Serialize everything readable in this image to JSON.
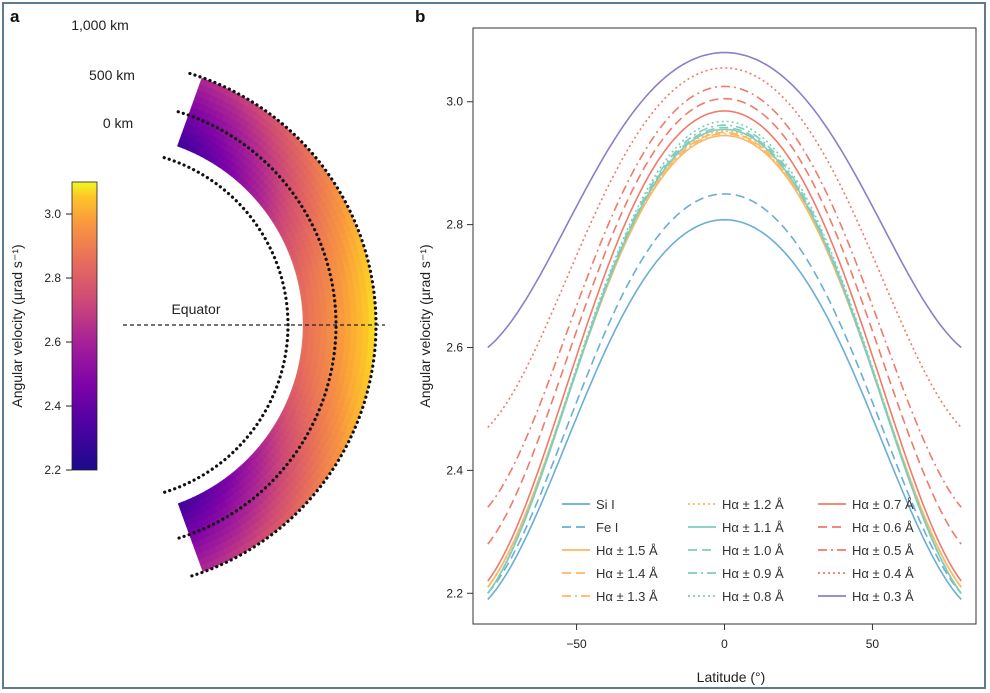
{
  "chart_data": [
    {
      "panel": "a",
      "type": "heatmap",
      "colorbar": {
        "label": "Angular velocity (µrad s⁻¹)",
        "ticks": [
          2.2,
          2.4,
          2.6,
          2.8,
          3.0
        ],
        "tick_labels": [
          "2.2",
          "2.4",
          "2.6",
          "2.8",
          "3.0"
        ],
        "range": [
          2.2,
          3.1
        ],
        "colormap": "plasma"
      },
      "height_labels": [
        "1,000 km",
        "500 km",
        "0 km"
      ],
      "annotation": "Equator"
    },
    {
      "panel": "b",
      "type": "line",
      "xlabel": "Latitude (°)",
      "ylabel": "Angular velocity (µrad s⁻¹)",
      "xlim": [
        -85,
        85
      ],
      "ylim": [
        2.15,
        3.12
      ],
      "xticks": [
        -50,
        0,
        50
      ],
      "xtick_labels": [
        "−50",
        "0",
        "50"
      ],
      "yticks": [
        2.2,
        2.4,
        2.6,
        2.8,
        3.0
      ],
      "ytick_labels": [
        "2.2",
        "2.4",
        "2.6",
        "2.8",
        "3.0"
      ],
      "legend_position": "bottom-center",
      "series": [
        {
          "name": "Si I",
          "color": "#6aaed6",
          "dash": "solid",
          "lat_range": [
            -80,
            80
          ],
          "peak": 2.808,
          "end": 2.19
        },
        {
          "name": "Fe I",
          "color": "#6aaed6",
          "dash": "long-dash",
          "lat_range": [
            -80,
            80
          ],
          "peak": 2.85,
          "end": 2.2
        },
        {
          "name": "Hα ± 1.5 Å",
          "color": "#fdb863",
          "dash": "solid",
          "lat_range": [
            -80,
            80
          ],
          "peak": 2.945,
          "end": 2.21
        },
        {
          "name": "Hα ± 1.4 Å",
          "color": "#fdb863",
          "dash": "long-dash",
          "lat_range": [
            -80,
            80
          ],
          "peak": 2.95,
          "end": 2.21
        },
        {
          "name": "Hα ± 1.3 Å",
          "color": "#fdb863",
          "dash": "dash-dot",
          "lat_range": [
            -80,
            80
          ],
          "peak": 2.948,
          "end": 2.21
        },
        {
          "name": "Hα ± 1.2 Å",
          "color": "#fdb863",
          "dash": "dotted",
          "lat_range": [
            -80,
            80
          ],
          "peak": 2.952,
          "end": 2.21
        },
        {
          "name": "Hα ± 1.1 Å",
          "color": "#7fcdbb",
          "dash": "solid",
          "lat_range": [
            -80,
            80
          ],
          "peak": 2.955,
          "end": 2.2
        },
        {
          "name": "Hα ± 1.0 Å",
          "color": "#7fcdbb",
          "dash": "long-dash",
          "lat_range": [
            -80,
            80
          ],
          "peak": 2.958,
          "end": 2.2
        },
        {
          "name": "Hα ± 0.9 Å",
          "color": "#7fcdbb",
          "dash": "dash-dot",
          "lat_range": [
            -80,
            80
          ],
          "peak": 2.962,
          "end": 2.2
        },
        {
          "name": "Hα ± 0.8 Å",
          "color": "#7fcdbb",
          "dash": "dotted",
          "lat_range": [
            -80,
            80
          ],
          "peak": 2.968,
          "end": 2.2
        },
        {
          "name": "Hα ± 0.7 Å",
          "color": "#f07a6a",
          "dash": "solid",
          "lat_range": [
            -80,
            80
          ],
          "peak": 2.985,
          "end": 2.22
        },
        {
          "name": "Hα ± 0.6 Å",
          "color": "#f07a6a",
          "dash": "long-dash",
          "lat_range": [
            -80,
            80
          ],
          "peak": 3.005,
          "end": 2.28
        },
        {
          "name": "Hα ± 0.5 Å",
          "color": "#f07a6a",
          "dash": "dash-dot",
          "lat_range": [
            -80,
            80
          ],
          "peak": 3.025,
          "end": 2.34
        },
        {
          "name": "Hα ± 0.4 Å",
          "color": "#f07a6a",
          "dash": "dotted",
          "lat_range": [
            -80,
            80
          ],
          "peak": 3.055,
          "end": 2.47
        },
        {
          "name": "Hα ± 0.3 Å",
          "color": "#8a7fc8",
          "dash": "solid",
          "lat_range": [
            -80,
            80
          ],
          "peak": 3.08,
          "end": 2.6
        }
      ]
    }
  ],
  "panels": {
    "a": "a",
    "b": "b"
  }
}
